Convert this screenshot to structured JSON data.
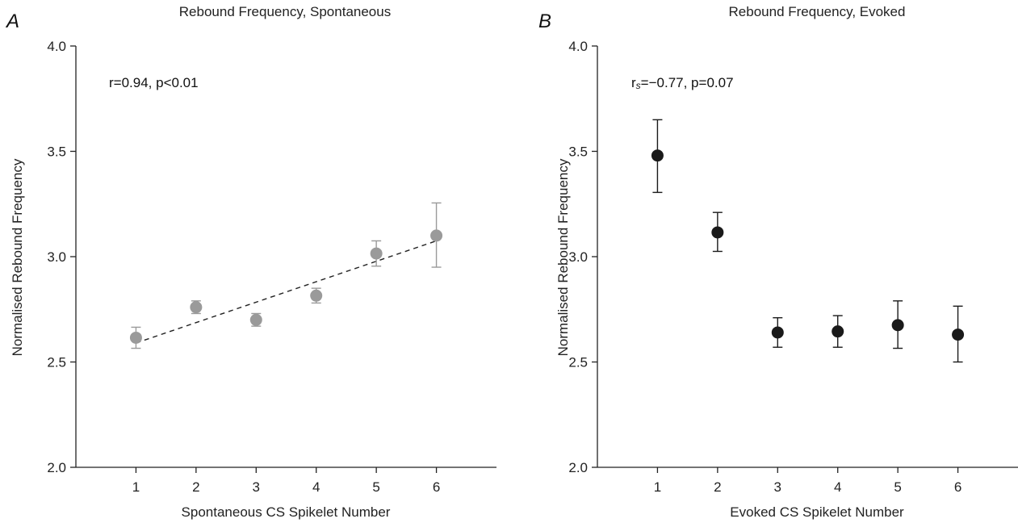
{
  "chart_data": [
    {
      "panel": "A",
      "type": "scatter",
      "title": "Rebound Frequency, Spontaneous",
      "xlabel": "Spontaneous CS Spikelet Number",
      "ylabel": "Normalised Rebound Frequency",
      "annotation": "r=0.94, p<0.01",
      "x_ticks": [
        "1",
        "2",
        "3",
        "4",
        "5",
        "6"
      ],
      "y_ticks": [
        "2.0",
        "2.5",
        "3.0",
        "3.5",
        "4.0"
      ],
      "xlim": [
        0,
        7
      ],
      "ylim": [
        2.0,
        4.0
      ],
      "grid": false,
      "marker_color": "#9a9a9a",
      "error_bar_color": "#9a9a9a",
      "points": [
        {
          "x": 1,
          "y": 2.615,
          "err_low": 2.565,
          "err_high": 2.665
        },
        {
          "x": 2,
          "y": 2.76,
          "err_low": 2.73,
          "err_high": 2.79
        },
        {
          "x": 3,
          "y": 2.7,
          "err_low": 2.67,
          "err_high": 2.73
        },
        {
          "x": 4,
          "y": 2.815,
          "err_low": 2.78,
          "err_high": 2.85
        },
        {
          "x": 5,
          "y": 3.015,
          "err_low": 2.955,
          "err_high": 3.075
        },
        {
          "x": 6,
          "y": 3.1,
          "err_low": 2.95,
          "err_high": 3.255
        }
      ],
      "fit_line": {
        "style": "dashed",
        "color": "#222222",
        "x": [
          1,
          6
        ],
        "y": [
          2.59,
          3.075
        ]
      }
    },
    {
      "panel": "B",
      "type": "scatter",
      "title": "Rebound Frequency, Evoked",
      "xlabel": "Evoked CS Spikelet Number",
      "ylabel": "Normalised Rebound Frequency",
      "annotation": {
        "prefix": "r",
        "subscript": "s",
        "rest": "=−0.77, p=0.07"
      },
      "x_ticks": [
        "1",
        "2",
        "3",
        "4",
        "5",
        "6"
      ],
      "y_ticks": [
        "2.0",
        "2.5",
        "3.0",
        "3.5",
        "4.0"
      ],
      "xlim": [
        0,
        7
      ],
      "ylim": [
        2.0,
        4.0
      ],
      "grid": false,
      "marker_color": "#1a1a1a",
      "error_bar_color": "#1a1a1a",
      "points": [
        {
          "x": 1,
          "y": 3.48,
          "err_low": 3.305,
          "err_high": 3.65
        },
        {
          "x": 2,
          "y": 3.115,
          "err_low": 3.025,
          "err_high": 3.21
        },
        {
          "x": 3,
          "y": 2.64,
          "err_low": 2.57,
          "err_high": 2.71
        },
        {
          "x": 4,
          "y": 2.645,
          "err_low": 2.57,
          "err_high": 2.72
        },
        {
          "x": 5,
          "y": 2.675,
          "err_low": 2.565,
          "err_high": 2.79
        },
        {
          "x": 6,
          "y": 2.63,
          "err_low": 2.5,
          "err_high": 2.765
        }
      ]
    }
  ]
}
